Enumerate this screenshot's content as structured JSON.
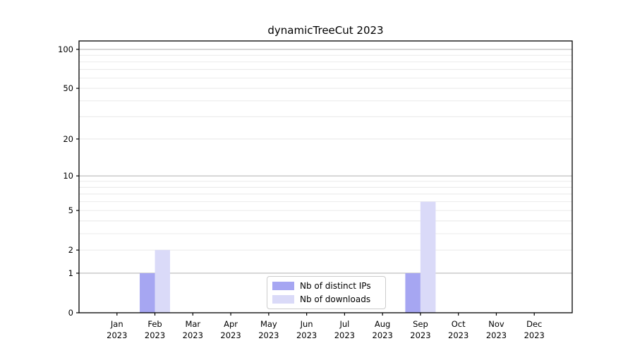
{
  "title": "dynamicTreeCut 2023",
  "chart_data": {
    "type": "bar",
    "title": "dynamicTreeCut 2023",
    "x": {
      "months": [
        "Jan",
        "Feb",
        "Mar",
        "Apr",
        "May",
        "Jun",
        "Jul",
        "Aug",
        "Sep",
        "Oct",
        "Nov",
        "Dec"
      ],
      "year": "2023"
    },
    "series": [
      {
        "name": "Nb of distinct IPs",
        "color": "#a6a6f2",
        "values": [
          0,
          1,
          0,
          0,
          0,
          0,
          0,
          0,
          1,
          0,
          0,
          0
        ]
      },
      {
        "name": "Nb of downloads",
        "color": "#dadaf8",
        "values": [
          0,
          2,
          0,
          0,
          0,
          0,
          0,
          0,
          6,
          0,
          0,
          0
        ]
      }
    ],
    "y_axis": {
      "scale": "log1p",
      "ticks": [
        0,
        1,
        2,
        5,
        10,
        20,
        50,
        100
      ],
      "major_gridlines": [
        1,
        10,
        100
      ],
      "minor_gridlines": [
        2,
        3,
        4,
        5,
        6,
        7,
        8,
        9,
        20,
        30,
        40,
        50,
        60,
        70,
        80,
        90
      ],
      "min": 0,
      "max": 116
    },
    "legend": {
      "position": "lower center"
    },
    "grid": "horizontal",
    "colors": {
      "axis_spine": "#000000",
      "major_grid": "#b8b8b8",
      "minor_grid": "#e8e8e8",
      "tick_text": "#000000"
    }
  }
}
